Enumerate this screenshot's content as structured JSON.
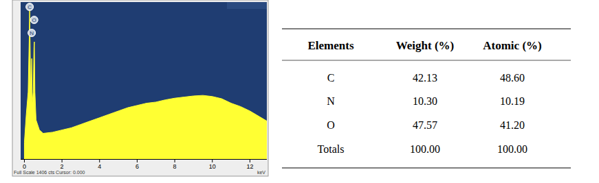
{
  "chart_data": {
    "type": "area",
    "color": "#ffff33",
    "x": [
      0.0,
      0.1,
      0.2,
      0.26,
      0.28,
      0.3,
      0.34,
      0.37,
      0.39,
      0.42,
      0.47,
      0.51,
      0.53,
      0.56,
      0.62,
      0.8,
      1.0,
      1.5,
      2,
      2.5,
      3,
      3.5,
      4,
      4.5,
      5,
      5.5,
      6,
      6.5,
      7,
      7.5,
      8,
      8.5,
      9,
      9.5,
      10,
      10.5,
      11,
      11.5,
      12,
      12.5,
      12.9
    ],
    "values": [
      150,
      400,
      600,
      1100,
      1400,
      1100,
      500,
      700,
      900,
      500,
      600,
      1000,
      1050,
      600,
      350,
      260,
      230,
      240,
      260,
      280,
      310,
      340,
      370,
      400,
      430,
      460,
      480,
      500,
      510,
      530,
      545,
      555,
      565,
      570,
      560,
      540,
      500,
      470,
      430,
      380,
      340
    ],
    "xlim": [
      -0.2,
      12.9
    ],
    "xticks": [
      0,
      2,
      4,
      6,
      8,
      10,
      12
    ],
    "ylim": [
      0,
      1406
    ],
    "tick_labels": "x",
    "grid": false,
    "x_label": "keV",
    "footer": "Full Scale 1406 cts Cursor: 0.000",
    "peak_labels": [
      {
        "label": "C",
        "x": 0.28
      },
      {
        "label": "O",
        "x": 0.52
      },
      {
        "label": "N",
        "x": 0.39
      }
    ]
  },
  "table": {
    "header": [
      "Elements",
      "Weight (%)",
      "Atomic (%)"
    ],
    "rows": [
      [
        "C",
        "42.13",
        "48.60"
      ],
      [
        "N",
        "10.30",
        "10.19"
      ],
      [
        "O",
        "47.57",
        "41.20"
      ],
      [
        "Totals",
        "100.00",
        "100.00"
      ]
    ]
  }
}
